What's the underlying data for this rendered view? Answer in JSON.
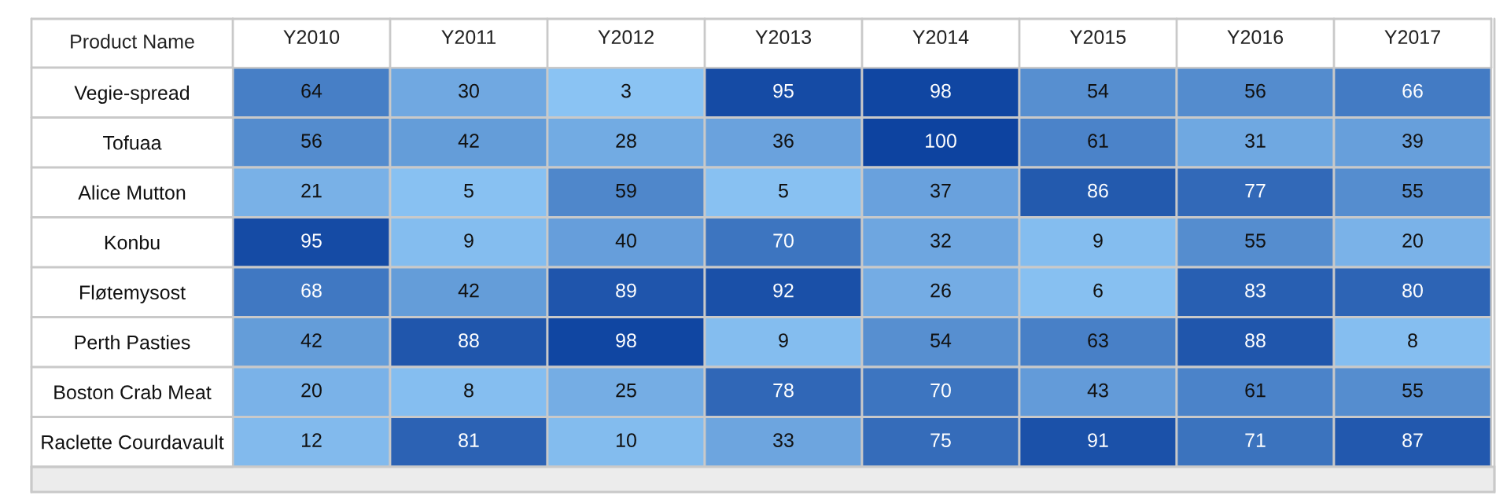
{
  "chart_data": {
    "type": "heatmap",
    "ylabel": "Product Name",
    "data_labels": true,
    "categories": [
      "Y2010",
      "Y2011",
      "Y2012",
      "Y2013",
      "Y2014",
      "Y2015",
      "Y2016",
      "Y2017"
    ],
    "y_categories": [
      "Vegie-spread",
      "Tofuaa",
      "Alice Mutton",
      "Konbu",
      "Fløtemysost",
      "Perth Pasties",
      "Boston Crab Meat",
      "Raclette Courdavault"
    ],
    "cells": [
      [
        64,
        30,
        3,
        95,
        98,
        54,
        56,
        66
      ],
      [
        56,
        42,
        28,
        36,
        100,
        61,
        31,
        39
      ],
      [
        21,
        5,
        59,
        5,
        37,
        86,
        77,
        55
      ],
      [
        95,
        9,
        40,
        70,
        32,
        9,
        55,
        20
      ],
      [
        68,
        42,
        89,
        92,
        26,
        6,
        83,
        80
      ],
      [
        42,
        88,
        98,
        9,
        54,
        63,
        88,
        8
      ],
      [
        20,
        8,
        25,
        78,
        70,
        43,
        61,
        55
      ],
      [
        12,
        81,
        10,
        33,
        75,
        91,
        71,
        87
      ]
    ]
  }
}
